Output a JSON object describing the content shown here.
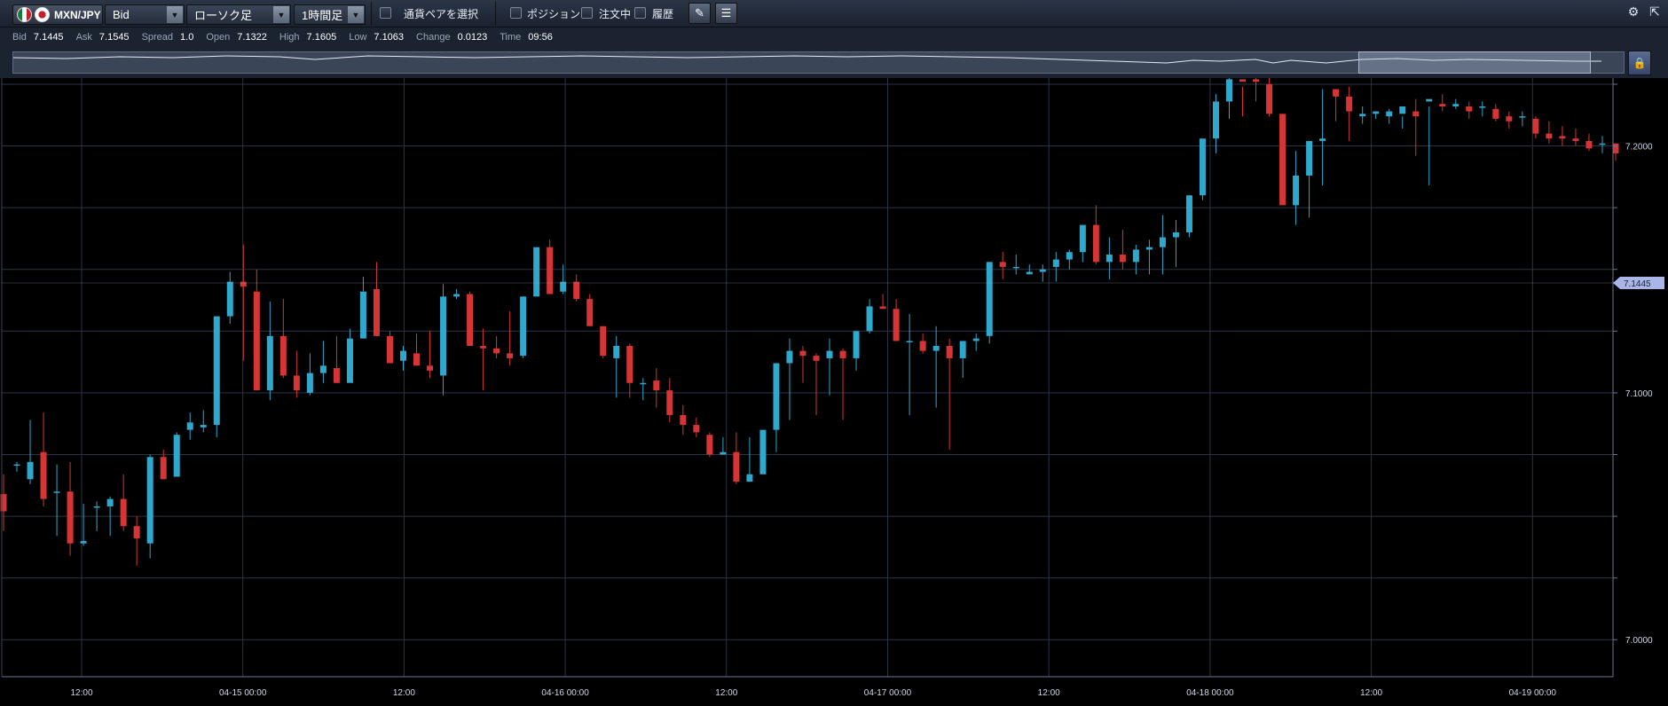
{
  "toolbar": {
    "pair_label": "MXN/JPY",
    "price_type": "Bid",
    "chart_type": "ローソク足",
    "timeframe": "1時間足",
    "select_pair_label": "通貨ペアを選択",
    "positions_label": "ポジション",
    "orders_label": "注文中",
    "history_label": "履歴"
  },
  "quote": {
    "bid_label": "Bid",
    "bid": "7.1445",
    "ask_label": "Ask",
    "ask": "7.1545",
    "spread_label": "Spread",
    "spread": "1.0",
    "open_label": "Open",
    "open": "7.1322",
    "high_label": "High",
    "high": "7.1605",
    "low_label": "Low",
    "low": "7.1063",
    "change_label": "Change",
    "change": "0.0123",
    "time_label": "Time",
    "time": "09:56"
  },
  "icons": {
    "settings": "gear-icon",
    "popout": "popout-icon",
    "lock": "lock-icon",
    "dropdown": "chevron-down-icon"
  },
  "colors": {
    "up": "#2ea8cc",
    "down": "#d53535",
    "grid": "#2a3448",
    "background": "#000000",
    "price_tag": "#aab6e8"
  },
  "chart_data": {
    "type": "candlestick",
    "ylim": [
      6.985,
      7.2275
    ],
    "y_ticks": [
      "7.0000",
      "7.1000",
      "7.2000"
    ],
    "x_tick_labels": [
      "12:00",
      "04-15 00:00",
      "12:00",
      "04-16 00:00",
      "12:00",
      "04-17 00:00",
      "12:00",
      "04-18 00:00",
      "12:00",
      "04-19 00:00"
    ],
    "current_price": "7.1445",
    "candles": [
      [
        7.059,
        7.067,
        7.052,
        7.044
      ],
      [
        7.071,
        7.072,
        7.071,
        7.068
      ],
      [
        7.065,
        7.089,
        7.072,
        7.063
      ],
      [
        7.076,
        7.092,
        7.057,
        7.054
      ],
      [
        7.06,
        7.071,
        7.06,
        7.042
      ],
      [
        7.06,
        7.072,
        7.039,
        7.034
      ],
      [
        7.039,
        7.055,
        7.04,
        7.038
      ],
      [
        7.054,
        7.056,
        7.054,
        7.044
      ],
      [
        7.054,
        7.058,
        7.057,
        7.042
      ],
      [
        7.057,
        7.067,
        7.046,
        7.044
      ],
      [
        7.046,
        7.05,
        7.041,
        7.03
      ],
      [
        7.039,
        7.075,
        7.074,
        7.033
      ],
      [
        7.074,
        7.077,
        7.065,
        7.065
      ],
      [
        7.066,
        7.084,
        7.083,
        7.067
      ],
      [
        7.085,
        7.092,
        7.088,
        7.081
      ],
      [
        7.086,
        7.093,
        7.087,
        7.084
      ],
      [
        7.087,
        7.13,
        7.131,
        7.082
      ],
      [
        7.131,
        7.149,
        7.145,
        7.128
      ],
      [
        7.145,
        7.16,
        7.143,
        7.113
      ],
      [
        7.141,
        7.15,
        7.101,
        7.101
      ],
      [
        7.101,
        7.137,
        7.123,
        7.097
      ],
      [
        7.123,
        7.138,
        7.107,
        7.106
      ],
      [
        7.107,
        7.117,
        7.101,
        7.098
      ],
      [
        7.1,
        7.116,
        7.108,
        7.099
      ],
      [
        7.108,
        7.121,
        7.111,
        7.104
      ],
      [
        7.11,
        7.123,
        7.104,
        7.104
      ],
      [
        7.104,
        7.126,
        7.122,
        7.112
      ],
      [
        7.122,
        7.147,
        7.141,
        7.141
      ],
      [
        7.142,
        7.153,
        7.123,
        7.123
      ],
      [
        7.123,
        7.125,
        7.112,
        7.113
      ],
      [
        7.113,
        7.119,
        7.117,
        7.109
      ],
      [
        7.116,
        7.124,
        7.111,
        7.111
      ],
      [
        7.111,
        7.125,
        7.109,
        7.106
      ],
      [
        7.107,
        7.144,
        7.139,
        7.099
      ],
      [
        7.139,
        7.142,
        7.14,
        7.138
      ],
      [
        7.14,
        7.141,
        7.119,
        7.119
      ],
      [
        7.119,
        7.126,
        7.118,
        7.101
      ],
      [
        7.118,
        7.123,
        7.116,
        7.114
      ],
      [
        7.116,
        7.133,
        7.114,
        7.111
      ],
      [
        7.115,
        7.139,
        7.139,
        7.114
      ],
      [
        7.139,
        7.145,
        7.159,
        7.157
      ],
      [
        7.159,
        7.162,
        7.14,
        7.14
      ],
      [
        7.141,
        7.152,
        7.145,
        7.14
      ],
      [
        7.145,
        7.148,
        7.138,
        7.137
      ],
      [
        7.138,
        7.14,
        7.127,
        7.127
      ],
      [
        7.127,
        7.121,
        7.115,
        7.114
      ],
      [
        7.114,
        7.123,
        7.119,
        7.098
      ],
      [
        7.119,
        7.12,
        7.104,
        7.098
      ],
      [
        7.104,
        7.106,
        7.104,
        7.097
      ],
      [
        7.105,
        7.11,
        7.101,
        7.094
      ],
      [
        7.101,
        7.106,
        7.091,
        7.088
      ],
      [
        7.091,
        7.095,
        7.087,
        7.083
      ],
      [
        7.087,
        7.09,
        7.084,
        7.082
      ],
      [
        7.083,
        7.084,
        7.075,
        7.074
      ],
      [
        7.075,
        7.082,
        7.076,
        7.075
      ],
      [
        7.076,
        7.084,
        7.064,
        7.063
      ],
      [
        7.064,
        7.082,
        7.067,
        7.064
      ],
      [
        7.067,
        7.085,
        7.085,
        7.075
      ],
      [
        7.085,
        7.112,
        7.112,
        7.076
      ],
      [
        7.112,
        7.122,
        7.117,
        7.089
      ],
      [
        7.117,
        7.119,
        7.115,
        7.104
      ],
      [
        7.115,
        7.116,
        7.113,
        7.091
      ],
      [
        7.114,
        7.122,
        7.117,
        7.099
      ],
      [
        7.117,
        7.118,
        7.114,
        7.089
      ],
      [
        7.114,
        7.12,
        7.125,
        7.109
      ],
      [
        7.125,
        7.138,
        7.135,
        7.124
      ],
      [
        7.135,
        7.14,
        7.134,
        7.135
      ],
      [
        7.134,
        7.138,
        7.121,
        7.121
      ],
      [
        7.121,
        7.132,
        7.121,
        7.091
      ],
      [
        7.121,
        7.124,
        7.117,
        7.116
      ],
      [
        7.117,
        7.127,
        7.119,
        7.094
      ],
      [
        7.119,
        7.122,
        7.114,
        7.077
      ],
      [
        7.114,
        7.119,
        7.121,
        7.106
      ],
      [
        7.121,
        7.124,
        7.122,
        7.117
      ],
      [
        7.123,
        7.153,
        7.153,
        7.12
      ],
      [
        7.153,
        7.157,
        7.151,
        7.146
      ],
      [
        7.151,
        7.156,
        7.151,
        7.148
      ],
      [
        7.148,
        7.152,
        7.149,
        7.148
      ],
      [
        7.149,
        7.152,
        7.15,
        7.145
      ],
      [
        7.151,
        7.157,
        7.154,
        7.145
      ],
      [
        7.154,
        7.158,
        7.157,
        7.15
      ],
      [
        7.157,
        7.163,
        7.168,
        7.153
      ],
      [
        7.168,
        7.176,
        7.153,
        7.152
      ],
      [
        7.153,
        7.163,
        7.156,
        7.146
      ],
      [
        7.156,
        7.166,
        7.153,
        7.15
      ],
      [
        7.153,
        7.16,
        7.158,
        7.148
      ],
      [
        7.158,
        7.162,
        7.159,
        7.148
      ],
      [
        7.159,
        7.172,
        7.163,
        7.148
      ],
      [
        7.163,
        7.17,
        7.165,
        7.151
      ],
      [
        7.165,
        7.18,
        7.18,
        7.163
      ],
      [
        7.18,
        7.202,
        7.203,
        7.178
      ],
      [
        7.203,
        7.221,
        7.218,
        7.197
      ],
      [
        7.218,
        7.237,
        7.227,
        7.211
      ],
      [
        7.227,
        7.224,
        7.226,
        7.212
      ],
      [
        7.227,
        7.236,
        7.226,
        7.218
      ],
      [
        7.225,
        7.237,
        7.213,
        7.212
      ],
      [
        7.213,
        7.213,
        7.176,
        7.176
      ],
      [
        7.176,
        7.198,
        7.188,
        7.168
      ],
      [
        7.188,
        7.193,
        7.202,
        7.171
      ],
      [
        7.202,
        7.223,
        7.203,
        7.184
      ],
      [
        7.223,
        7.223,
        7.22,
        7.21
      ],
      [
        7.22,
        7.224,
        7.214,
        7.202
      ],
      [
        7.212,
        7.216,
        7.213,
        7.209
      ],
      [
        7.213,
        7.214,
        7.214,
        7.211
      ],
      [
        7.212,
        7.215,
        7.214,
        7.209
      ],
      [
        7.213,
        7.212,
        7.216,
        7.207
      ],
      [
        7.214,
        7.219,
        7.212,
        7.196
      ],
      [
        7.218,
        7.216,
        7.219,
        7.184
      ],
      [
        7.217,
        7.221,
        7.216,
        7.214
      ],
      [
        7.216,
        7.219,
        7.217,
        7.215
      ],
      [
        7.216,
        7.218,
        7.214,
        7.211
      ],
      [
        7.216,
        7.218,
        7.216,
        7.212
      ],
      [
        7.215,
        7.217,
        7.211,
        7.21
      ],
      [
        7.212,
        7.214,
        7.21,
        7.207
      ],
      [
        7.212,
        7.214,
        7.212,
        7.208
      ],
      [
        7.211,
        7.212,
        7.205,
        7.203
      ],
      [
        7.205,
        7.21,
        7.203,
        7.201
      ],
      [
        7.204,
        7.208,
        7.203,
        7.2
      ],
      [
        7.203,
        7.207,
        7.202,
        7.2
      ],
      [
        7.202,
        7.205,
        7.199,
        7.198
      ],
      [
        7.201,
        7.204,
        7.201,
        7.197
      ],
      [
        7.201,
        7.201,
        7.197,
        7.194
      ]
    ]
  }
}
